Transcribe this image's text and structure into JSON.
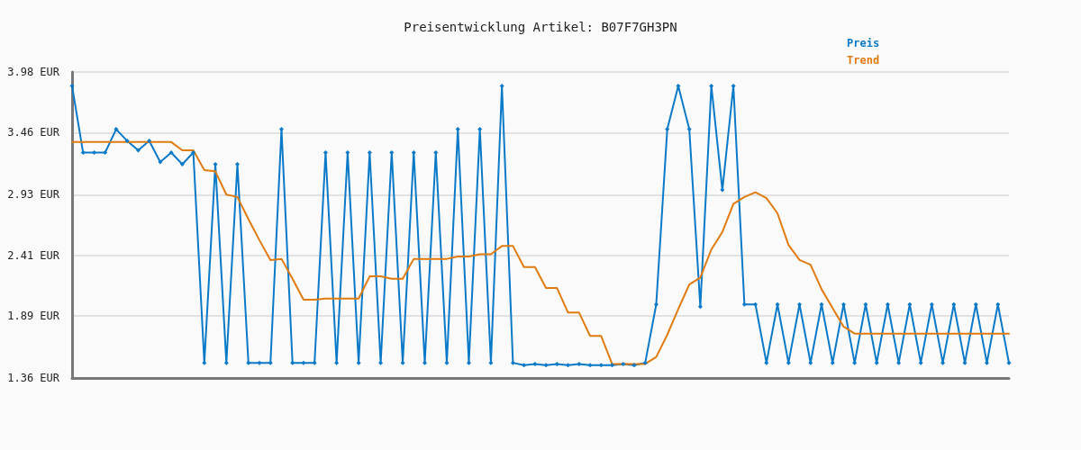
{
  "chart_data": {
    "type": "line",
    "title": "Preisentwicklung Artikel: B07F7GH3PN",
    "categories": [
      null,
      null,
      null,
      null,
      null,
      null,
      null,
      null,
      null,
      null,
      null,
      null,
      null,
      null,
      null,
      null,
      null,
      null,
      null,
      null,
      null,
      null,
      null,
      null,
      null,
      null,
      null,
      null,
      null,
      null,
      null,
      null,
      null,
      null,
      null,
      null,
      null,
      null,
      null,
      null,
      null,
      null,
      null,
      null,
      null,
      null,
      null,
      null,
      null,
      null,
      null,
      null,
      null,
      null,
      null,
      null,
      null,
      null,
      null,
      null,
      null,
      null,
      null,
      null,
      null,
      null,
      null,
      null,
      null,
      null,
      null,
      null,
      null,
      null,
      null,
      null,
      null,
      null,
      null,
      null,
      null,
      null,
      null,
      null,
      null,
      null
    ],
    "series": [
      {
        "name": "Preis",
        "color": "#0a7ac8",
        "marker": "diamond",
        "values": [
          3.86,
          3.29,
          3.29,
          3.29,
          3.49,
          3.39,
          3.31,
          3.39,
          3.21,
          3.29,
          3.19,
          3.29,
          1.49,
          3.19,
          1.49,
          3.19,
          1.49,
          1.49,
          1.49,
          3.49,
          1.49,
          1.49,
          1.49,
          3.29,
          1.49,
          3.29,
          1.49,
          3.29,
          1.49,
          3.29,
          1.49,
          3.29,
          1.49,
          3.29,
          1.49,
          3.49,
          1.49,
          3.49,
          1.49,
          3.86,
          1.49,
          1.47,
          1.48,
          1.47,
          1.48,
          1.47,
          1.48,
          1.47,
          1.47,
          1.47,
          1.48,
          1.47,
          1.49,
          1.99,
          3.49,
          3.86,
          3.49,
          1.97,
          3.86,
          2.97,
          3.86,
          1.99,
          1.99,
          1.49,
          1.99,
          1.49,
          1.99,
          1.49,
          1.99,
          1.49,
          1.99,
          1.49,
          1.99,
          1.49,
          1.99,
          1.49,
          1.99,
          1.49,
          1.99,
          1.49,
          1.99,
          1.49,
          1.99,
          1.49,
          1.99,
          1.49
        ]
      },
      {
        "name": "Trend",
        "color": "#e07b10",
        "marker": "none",
        "values": [
          3.38,
          3.38,
          3.38,
          3.38,
          3.38,
          3.38,
          3.38,
          3.38,
          3.38,
          3.38,
          3.31,
          3.31,
          3.14,
          3.13,
          2.93,
          2.91,
          2.72,
          2.54,
          2.37,
          2.38,
          2.21,
          2.03,
          2.03,
          2.04,
          2.04,
          2.04,
          2.04,
          2.23,
          2.23,
          2.21,
          2.21,
          2.38,
          2.38,
          2.38,
          2.38,
          2.4,
          2.4,
          2.42,
          2.42,
          2.49,
          2.49,
          2.31,
          2.31,
          2.13,
          2.13,
          1.92,
          1.92,
          1.72,
          1.72,
          1.48,
          1.48,
          1.48,
          1.48,
          1.54,
          1.73,
          1.95,
          2.16,
          2.22,
          2.46,
          2.61,
          2.85,
          2.91,
          2.95,
          2.9,
          2.77,
          2.5,
          2.37,
          2.33,
          2.12,
          1.96,
          1.8,
          1.74,
          1.74,
          1.74,
          1.74,
          1.74,
          1.74,
          1.74,
          1.74,
          1.74,
          1.74,
          1.74,
          1.74,
          1.74,
          1.74,
          1.74
        ]
      }
    ],
    "ylim": [
      1.36,
      3.98
    ],
    "yticks": [
      {
        "value": 1.36,
        "label": "1.36 EUR"
      },
      {
        "value": 1.89,
        "label": "1.89 EUR"
      },
      {
        "value": 2.41,
        "label": "2.41 EUR"
      },
      {
        "value": 2.93,
        "label": "2.93 EUR"
      },
      {
        "value": 3.46,
        "label": "3.46 EUR"
      },
      {
        "value": 3.98,
        "label": "3.98 EUR"
      }
    ],
    "grid": "y",
    "legend": "top right",
    "line_style": "solid"
  }
}
